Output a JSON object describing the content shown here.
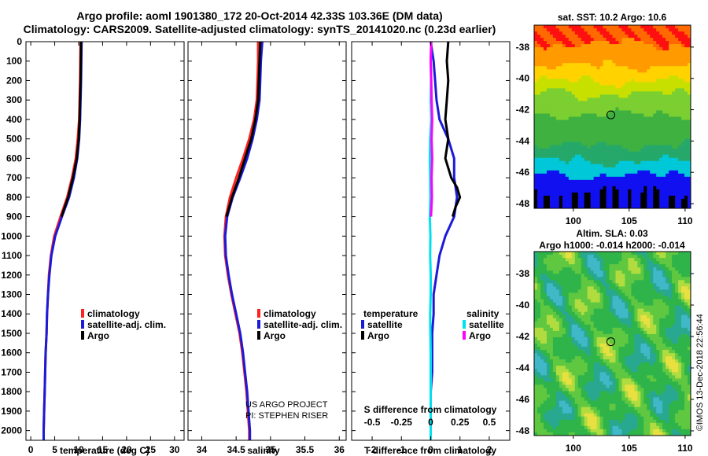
{
  "title_line1": "Argo profile: aoml 1901380_172 20-Oct-2014 42.33S 103.36E (DM data)",
  "title_line2": "Climatology: CARS2009. Satellite-adjusted climatology: synTS_20141020.nc (0.23d earlier)",
  "colors": {
    "climatology": "#ff2020",
    "satellite": "#1a1ad9",
    "argo": "#000000",
    "sat_salinity": "#00e0ee",
    "argo_salinity": "#ff00ff"
  },
  "credit": {
    "line1": "US ARGO PROJECT",
    "line2": "PI: STEPHEN RISER"
  },
  "imos_stamp": "©IMOS 13-Dec-2018 22:56:44",
  "chart_data": [
    {
      "type": "line",
      "name": "temperature profile",
      "xlabel": "temperature (deg C)",
      "ylabel": "",
      "xlim": [
        -1,
        32
      ],
      "ylim": [
        2050,
        0
      ],
      "xticks": [
        "0",
        "5",
        "10",
        "15",
        "20",
        "25",
        "30"
      ],
      "yticks": [
        "0",
        "100",
        "200",
        "300",
        "400",
        "500",
        "600",
        "700",
        "800",
        "900",
        "1000",
        "1100",
        "1200",
        "1300",
        "1400",
        "1500",
        "1600",
        "1700",
        "1800",
        "1900",
        "2000"
      ],
      "legend": [
        "climatology",
        "satellite-adj. clim.",
        "Argo"
      ],
      "series": [
        {
          "name": "climatology",
          "color": "#ff2020",
          "depth": [
            0,
            200,
            400,
            500,
            600,
            700,
            800,
            900,
            1000,
            1100,
            1200,
            1300,
            1400,
            1500,
            1600,
            1700,
            1800,
            1900,
            2000,
            2050
          ],
          "values": [
            10.4,
            10.3,
            10.1,
            9.8,
            9.4,
            8.6,
            7.6,
            6.2,
            4.9,
            4.2,
            3.8,
            3.6,
            3.4,
            3.3,
            3.1,
            3.0,
            2.9,
            2.8,
            2.7,
            2.7
          ]
        },
        {
          "name": "satellite-adj. clim.",
          "color": "#1a1ad9",
          "depth": [
            0,
            200,
            400,
            500,
            600,
            700,
            800,
            900,
            1000,
            1100,
            1200,
            1300,
            1400,
            1500,
            1600,
            1700,
            1800,
            1900,
            2000,
            2050
          ],
          "values": [
            10.6,
            10.5,
            10.3,
            10.1,
            9.7,
            9.0,
            8.0,
            6.5,
            5.1,
            4.3,
            3.9,
            3.6,
            3.4,
            3.3,
            3.1,
            3.0,
            2.9,
            2.8,
            2.7,
            2.7
          ]
        },
        {
          "name": "Argo",
          "color": "#000000",
          "depth": [
            0,
            200,
            400,
            500,
            600,
            700,
            800,
            900
          ],
          "values": [
            10.5,
            10.4,
            10.2,
            10.0,
            9.6,
            8.8,
            7.8,
            6.4
          ]
        }
      ]
    },
    {
      "type": "line",
      "name": "salinity profile",
      "xlabel": "salinity",
      "xlim": [
        33.8,
        36.1
      ],
      "ylim": [
        2050,
        0
      ],
      "xticks": [
        "34",
        "34.5",
        "35",
        "35.5",
        "36"
      ],
      "legend": [
        "climatology",
        "satellite-adj. clim.",
        "Argo"
      ],
      "series": [
        {
          "name": "climatology",
          "color": "#ff2020",
          "depth": [
            0,
            100,
            200,
            300,
            400,
            500,
            600,
            700,
            800,
            900,
            1000,
            1100,
            1200,
            1300,
            1400,
            1500,
            1600,
            1700,
            1800,
            1900,
            2000,
            2050
          ],
          "values": [
            34.82,
            34.82,
            34.81,
            34.8,
            34.76,
            34.69,
            34.6,
            34.5,
            34.41,
            34.35,
            34.33,
            34.34,
            34.38,
            34.43,
            34.49,
            34.55,
            34.59,
            34.62,
            34.65,
            34.67,
            34.69,
            34.69
          ]
        },
        {
          "name": "satellite-adj. clim.",
          "color": "#1a1ad9",
          "depth": [
            0,
            100,
            200,
            300,
            400,
            500,
            600,
            700,
            800,
            900,
            1000,
            1100,
            1200,
            1300,
            1400,
            1500,
            1600,
            1700,
            1800,
            1900,
            2000,
            2050
          ],
          "values": [
            34.88,
            34.86,
            34.85,
            34.84,
            34.8,
            34.74,
            34.66,
            34.56,
            34.45,
            34.37,
            34.34,
            34.35,
            34.39,
            34.44,
            34.5,
            34.56,
            34.6,
            34.63,
            34.66,
            34.68,
            34.7,
            34.7
          ]
        },
        {
          "name": "Argo",
          "color": "#000000",
          "depth": [
            0,
            100,
            200,
            300,
            400,
            500,
            600,
            700,
            800,
            900
          ],
          "values": [
            34.85,
            34.84,
            34.83,
            34.82,
            34.78,
            34.72,
            34.63,
            34.54,
            34.44,
            34.36
          ]
        }
      ]
    },
    {
      "type": "line",
      "name": "difference from climatology",
      "xlabel": "T difference from climatology",
      "xlabel_top": "S difference from climatology",
      "xlim": [
        -2.7,
        2.7
      ],
      "ylim": [
        2050,
        0
      ],
      "xticks": [
        "-2",
        "-1",
        "0",
        "1",
        "2"
      ],
      "xticks_top": [
        "-0.5",
        "-0.25",
        "0",
        "0.25",
        "0.5"
      ],
      "legend_left_title": "temperature",
      "legend_right_title": "salinity",
      "legend_left": [
        "satellite",
        "Argo"
      ],
      "legend_right": [
        "satellite",
        "Argo"
      ],
      "series": [
        {
          "name": "temperature satellite",
          "color": "#1a1ad9",
          "depth": [
            0,
            100,
            200,
            300,
            400,
            500,
            600,
            700,
            800,
            900,
            1000,
            1100,
            1200,
            1300,
            1400,
            1500,
            1600,
            1700,
            1800,
            1900,
            2000,
            2050
          ],
          "values": [
            0.0,
            0.1,
            0.15,
            0.2,
            0.3,
            0.6,
            0.8,
            0.8,
            0.9,
            0.8,
            0.5,
            0.3,
            0.2,
            0.1,
            0.1,
            0.05,
            0.05,
            0.05,
            0.0,
            0.0,
            0.0,
            0.0
          ]
        },
        {
          "name": "temperature Argo",
          "color": "#000000",
          "depth": [
            0,
            100,
            200,
            300,
            400,
            500,
            600,
            700,
            750,
            800,
            850,
            900
          ],
          "values": [
            0.6,
            0.55,
            0.6,
            0.55,
            0.5,
            0.6,
            0.5,
            0.7,
            0.9,
            1.0,
            0.85,
            0.75
          ]
        },
        {
          "name": "salinity satellite",
          "color": "#00e0ee",
          "depth": [
            0,
            100,
            200,
            300,
            400,
            500,
            600,
            700,
            800,
            900,
            1000,
            1100,
            1200,
            1300,
            1400,
            1500,
            1600,
            1700,
            1800,
            1900,
            2000,
            2050
          ],
          "values": [
            0.02,
            0.0,
            0.01,
            0.0,
            0.02,
            -0.02,
            -0.03,
            -0.02,
            -0.01,
            -0.03,
            -0.01,
            -0.02,
            0.0,
            0.0,
            -0.02,
            -0.01,
            0.0,
            0.0,
            0.0,
            0.0,
            0.0,
            0.0
          ]
        },
        {
          "name": "salinity Argo",
          "color": "#ff00ff",
          "depth": [
            0,
            100,
            200,
            300,
            400,
            500,
            600,
            700,
            800,
            900
          ],
          "values": [
            0.02,
            0.0,
            0.02,
            0.03,
            0.05,
            0.03,
            0.05,
            0.03,
            0.04,
            0.01
          ]
        }
      ]
    },
    {
      "type": "heatmap",
      "name": "SST map",
      "title": "sat. SST: 10.2 Argo: 10.6",
      "xlim": [
        96.5,
        110.5
      ],
      "ylim": [
        -48.3,
        -36.6
      ],
      "xticks": [
        "100",
        "105",
        "110"
      ],
      "yticks": [
        "-38",
        "-40",
        "-42",
        "-44",
        "-46",
        "-48"
      ],
      "marker": {
        "lon": 103.36,
        "lat": -42.33
      }
    },
    {
      "type": "heatmap",
      "name": "SLA map",
      "title": "Altim. SLA: 0.03",
      "subtitle": "Argo h1000: -0.014 h2000: -0.014",
      "xlim": [
        96.5,
        110.5
      ],
      "ylim": [
        -48.3,
        -36.6
      ],
      "xticks": [
        "100",
        "105",
        "110"
      ],
      "yticks": [
        "-38",
        "-40",
        "-42",
        "-44",
        "-46",
        "-48"
      ],
      "marker": {
        "lon": 103.36,
        "lat": -42.33
      }
    }
  ]
}
